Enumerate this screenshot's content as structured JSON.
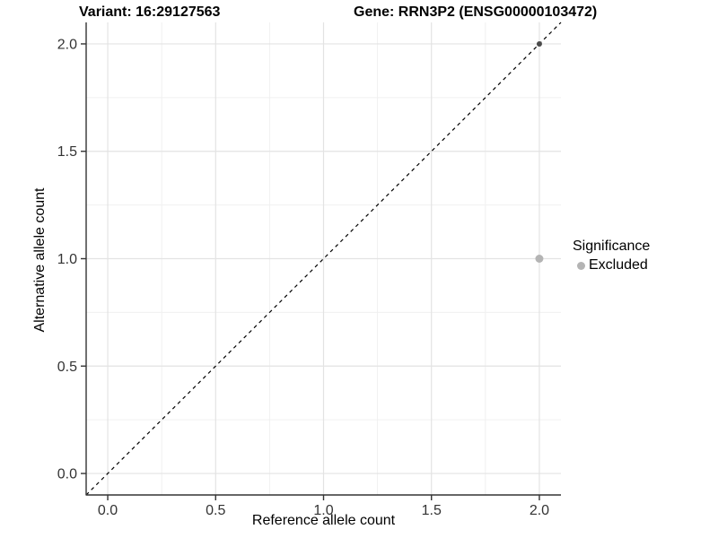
{
  "figure": {
    "title_variant": "Variant: 16:29127563",
    "title_gene": "Gene: RRN3P2 (ENSG00000103472)"
  },
  "chart_data": {
    "type": "scatter",
    "title": "Variant: 16:29127563   Gene: RRN3P2 (ENSG00000103472)",
    "xlabel": "Reference allele count",
    "ylabel": "Alternative allele count",
    "xlim": [
      -0.1,
      2.1
    ],
    "ylim": [
      -0.1,
      2.1
    ],
    "x_major_ticks": [
      "0.0",
      "0.5",
      "1.0",
      "1.5",
      "2.0"
    ],
    "y_major_ticks": [
      "0.0",
      "0.5",
      "1.0",
      "1.5",
      "2.0"
    ],
    "x_minor_ticks": [
      0.25,
      0.75,
      1.25,
      1.75
    ],
    "y_minor_ticks": [
      0.25,
      0.75,
      1.25,
      1.75
    ],
    "grid": {
      "major_color": "#e3e3e3",
      "minor_color": "#f0f0f0",
      "grid_on": true
    },
    "axis_color": "#333333",
    "tick_label_color": "#333333",
    "reference_line": {
      "slope": 1,
      "intercept": 0,
      "style": "dashed",
      "color": "#000000"
    },
    "points": [
      {
        "x": 2.0,
        "y": 1.0,
        "color": "#b4b4b4",
        "diameter": 9,
        "significance": "Excluded"
      },
      {
        "x": 2.0,
        "y": 2.0,
        "color": "#4a4a4a",
        "diameter": 6,
        "significance": "Excluded"
      }
    ],
    "legend": {
      "position": "right",
      "title": "Significance",
      "items": [
        {
          "label": "Excluded",
          "color": "#b4b4b4"
        }
      ]
    }
  }
}
